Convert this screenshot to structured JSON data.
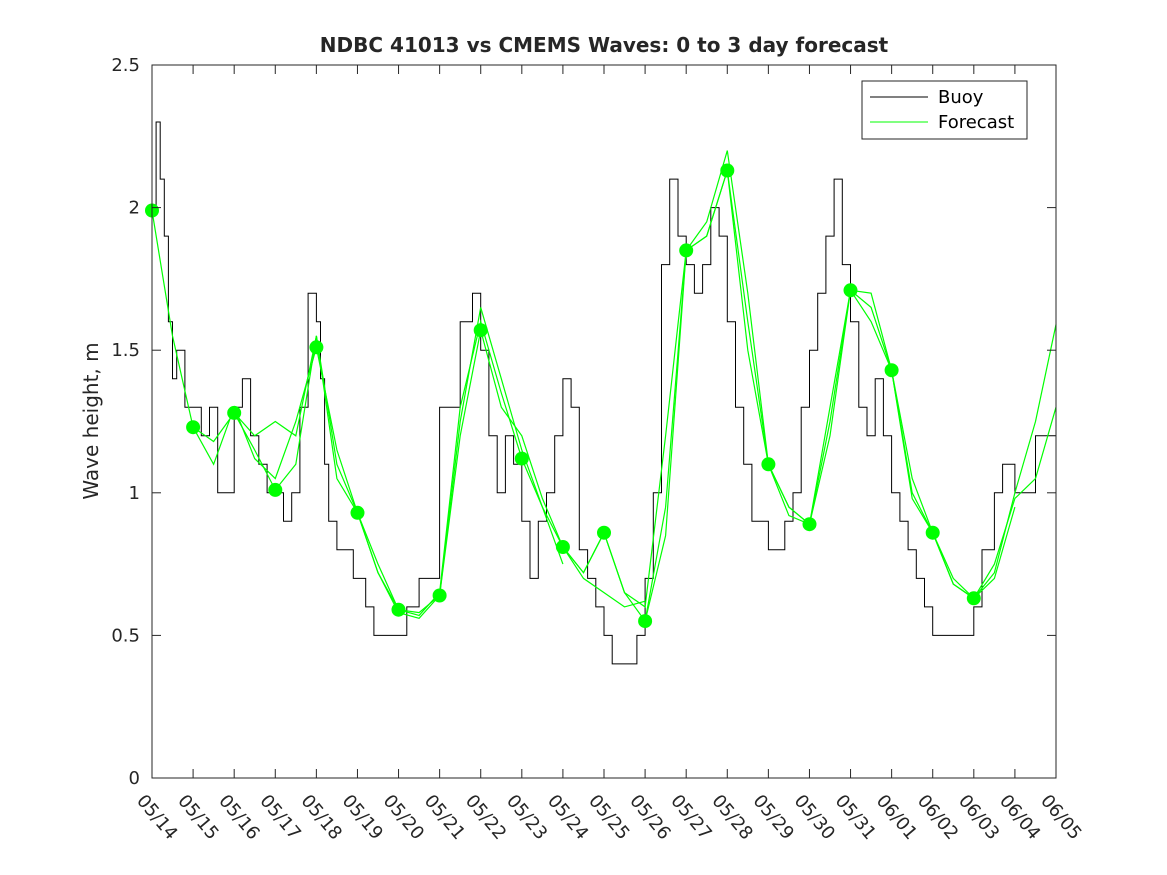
{
  "chart_data": {
    "type": "line",
    "title": "NDBC 41013 vs CMEMS Waves: 0 to 3 day forecast",
    "xlabel": "",
    "ylabel": "Wave height, m",
    "x_tick_labels": [
      "05/14",
      "05/15",
      "05/16",
      "05/17",
      "05/18",
      "05/19",
      "05/20",
      "05/21",
      "05/22",
      "05/23",
      "05/24",
      "05/25",
      "05/26",
      "05/27",
      "05/28",
      "05/29",
      "05/30",
      "05/31",
      "06/01",
      "06/02",
      "06/03",
      "06/04",
      "06/05"
    ],
    "y_ticks": [
      0,
      0.5,
      1,
      1.5,
      2,
      2.5
    ],
    "y_tick_labels": [
      "0",
      "0.5",
      "1",
      "1.5",
      "2",
      "2.5"
    ],
    "xlim": [
      0,
      22
    ],
    "ylim": [
      0,
      2.5
    ],
    "grid": false,
    "legend": {
      "placement": "top-right",
      "entries": [
        "Buoy",
        "Forecast"
      ]
    },
    "colors": {
      "buoy": "#000000",
      "forecast": "#00ff00",
      "marker": "#00ff00",
      "axis": "#262626"
    },
    "buoy": {
      "name": "Buoy",
      "x": [
        0,
        0.1,
        0.2,
        0.3,
        0.4,
        0.5,
        0.6,
        0.8,
        1.0,
        1.2,
        1.4,
        1.6,
        1.8,
        2.0,
        2.2,
        2.4,
        2.6,
        2.8,
        3.0,
        3.2,
        3.4,
        3.6,
        3.8,
        4.0,
        4.1,
        4.2,
        4.3,
        4.5,
        4.7,
        4.9,
        5.0,
        5.2,
        5.4,
        5.6,
        5.8,
        6.0,
        6.2,
        6.5,
        7.0,
        7.5,
        7.8,
        8.0,
        8.2,
        8.4,
        8.6,
        8.8,
        9.0,
        9.2,
        9.4,
        9.6,
        9.8,
        10.0,
        10.2,
        10.4,
        10.6,
        10.8,
        11.0,
        11.2,
        11.4,
        11.6,
        11.8,
        12.0,
        12.2,
        12.4,
        12.6,
        12.8,
        13.0,
        13.2,
        13.4,
        13.6,
        13.8,
        14.0,
        14.2,
        14.4,
        14.6,
        14.8,
        15.0,
        15.2,
        15.4,
        15.6,
        15.8,
        16.0,
        16.2,
        16.4,
        16.6,
        16.8,
        17.0,
        17.2,
        17.4,
        17.6,
        17.8,
        18.0,
        18.2,
        18.4,
        18.6,
        18.8,
        19.0,
        19.2,
        19.4,
        19.6,
        19.8,
        20.0,
        20.2,
        20.5,
        20.7,
        20.9,
        21.0,
        21.5,
        22.0
      ],
      "y": [
        2.0,
        2.3,
        2.1,
        1.9,
        1.6,
        1.4,
        1.5,
        1.3,
        1.3,
        1.2,
        1.3,
        1.0,
        1.0,
        1.3,
        1.4,
        1.2,
        1.1,
        1.0,
        1.0,
        0.9,
        1.0,
        1.3,
        1.7,
        1.6,
        1.4,
        1.1,
        0.9,
        0.8,
        0.8,
        0.7,
        0.7,
        0.6,
        0.5,
        0.5,
        0.5,
        0.5,
        0.6,
        0.7,
        1.3,
        1.6,
        1.7,
        1.5,
        1.2,
        1.0,
        1.2,
        1.1,
        0.9,
        0.7,
        0.9,
        1.0,
        1.2,
        1.4,
        1.3,
        0.8,
        0.7,
        0.6,
        0.5,
        0.4,
        0.4,
        0.4,
        0.5,
        0.7,
        1.0,
        1.8,
        2.1,
        1.9,
        1.8,
        1.7,
        1.8,
        2.0,
        1.9,
        1.6,
        1.3,
        1.1,
        0.9,
        0.9,
        0.8,
        0.8,
        0.9,
        1.0,
        1.3,
        1.5,
        1.7,
        1.9,
        2.1,
        1.8,
        1.6,
        1.3,
        1.2,
        1.4,
        1.2,
        1.0,
        0.9,
        0.8,
        0.7,
        0.6,
        0.5,
        0.5,
        0.5,
        0.5,
        0.5,
        0.6,
        0.8,
        1.0,
        1.1,
        1.1,
        1.0,
        1.2,
        1.4
      ]
    },
    "forecast_markers": {
      "name": "Forecast",
      "x": [
        0,
        1,
        2,
        3,
        4,
        5,
        6,
        7,
        8,
        9,
        10,
        11,
        12,
        13,
        14,
        15,
        16,
        17,
        18,
        19,
        20
      ],
      "y": [
        1.99,
        1.23,
        1.28,
        1.01,
        1.51,
        0.93,
        0.59,
        0.64,
        1.57,
        1.12,
        0.81,
        0.86,
        0.55,
        1.85,
        2.13,
        1.1,
        0.89,
        1.71,
        1.43,
        0.86,
        0.63
      ]
    },
    "forecast_runs": [
      {
        "x": [
          0,
          0.5,
          1,
          1.5,
          2,
          2.5,
          3
        ],
        "y": [
          1.99,
          1.55,
          1.23,
          1.18,
          1.28,
          1.15,
          1.01
        ]
      },
      {
        "x": [
          1,
          1.5,
          2,
          2.5,
          3,
          3.5,
          4
        ],
        "y": [
          1.23,
          1.1,
          1.3,
          1.12,
          1.05,
          1.25,
          1.51
        ]
      },
      {
        "x": [
          2,
          2.5,
          3,
          3.5,
          4,
          4.5,
          5
        ],
        "y": [
          1.28,
          1.2,
          1.25,
          1.2,
          1.55,
          1.1,
          0.93
        ]
      },
      {
        "x": [
          3,
          3.5,
          4,
          4.5,
          5,
          5.5,
          6
        ],
        "y": [
          1.01,
          1.1,
          1.55,
          1.05,
          0.93,
          0.75,
          0.59
        ]
      },
      {
        "x": [
          4,
          4.5,
          5,
          5.5,
          6,
          6.5,
          7
        ],
        "y": [
          1.51,
          1.15,
          0.93,
          0.72,
          0.58,
          0.56,
          0.64
        ]
      },
      {
        "x": [
          5,
          5.5,
          6,
          6.5,
          7,
          7.5,
          8
        ],
        "y": [
          0.93,
          0.72,
          0.59,
          0.58,
          0.64,
          1.2,
          1.57
        ]
      },
      {
        "x": [
          6,
          6.5,
          7,
          7.5,
          8,
          8.5,
          9
        ],
        "y": [
          0.59,
          0.57,
          0.65,
          1.3,
          1.6,
          1.35,
          1.12
        ]
      },
      {
        "x": [
          7,
          7.5,
          8,
          8.5,
          9,
          9.5,
          10
        ],
        "y": [
          0.64,
          1.25,
          1.65,
          1.4,
          1.15,
          0.95,
          0.75
        ]
      },
      {
        "x": [
          8,
          8.5,
          9,
          9.5,
          10,
          10.5,
          11
        ],
        "y": [
          1.57,
          1.3,
          1.2,
          0.98,
          0.81,
          0.72,
          0.86
        ]
      },
      {
        "x": [
          9,
          9.5,
          10,
          10.5,
          11,
          11.5,
          12
        ],
        "y": [
          1.12,
          0.95,
          0.81,
          0.7,
          0.65,
          0.6,
          0.62
        ]
      },
      {
        "x": [
          10,
          10.5,
          11,
          11.5,
          12,
          12.5,
          13
        ],
        "y": [
          0.81,
          0.72,
          0.86,
          0.65,
          0.6,
          1.2,
          1.85
        ]
      },
      {
        "x": [
          11,
          11.5,
          12,
          12.5,
          13,
          13.5,
          14
        ],
        "y": [
          0.86,
          0.65,
          0.55,
          0.85,
          1.85,
          1.9,
          2.13
        ]
      },
      {
        "x": [
          12,
          12.5,
          13,
          13.5,
          14,
          14.5,
          15
        ],
        "y": [
          0.55,
          0.95,
          1.85,
          1.95,
          2.2,
          1.7,
          1.1
        ]
      },
      {
        "x": [
          13,
          13.5,
          14,
          14.5,
          15,
          15.5,
          16
        ],
        "y": [
          1.85,
          1.9,
          2.13,
          1.6,
          1.1,
          0.95,
          0.89
        ]
      },
      {
        "x": [
          14,
          14.5,
          15,
          15.5,
          16,
          16.5,
          17
        ],
        "y": [
          2.13,
          1.5,
          1.1,
          0.92,
          0.89,
          1.2,
          1.71
        ]
      },
      {
        "x": [
          15,
          15.5,
          16,
          16.5,
          17,
          17.5,
          18
        ],
        "y": [
          1.1,
          0.95,
          0.89,
          1.25,
          1.71,
          1.7,
          1.43
        ]
      },
      {
        "x": [
          16,
          16.5,
          17,
          17.5,
          18,
          18.5,
          19
        ],
        "y": [
          0.89,
          1.3,
          1.71,
          1.65,
          1.43,
          1.05,
          0.86
        ]
      },
      {
        "x": [
          17,
          17.5,
          18,
          18.5,
          19,
          19.5,
          20
        ],
        "y": [
          1.71,
          1.6,
          1.43,
          0.98,
          0.86,
          0.7,
          0.63
        ]
      },
      {
        "x": [
          18,
          18.5,
          19,
          19.5,
          20,
          20.5,
          21
        ],
        "y": [
          1.43,
          1.0,
          0.86,
          0.68,
          0.63,
          0.7,
          0.95
        ]
      },
      {
        "x": [
          19,
          19.5,
          20,
          20.5,
          21,
          21.5,
          22
        ],
        "y": [
          0.86,
          0.68,
          0.63,
          0.72,
          1.0,
          1.25,
          1.59
        ]
      },
      {
        "x": [
          20,
          20.5,
          21,
          21.5,
          22
        ],
        "y": [
          0.63,
          0.75,
          0.98,
          1.05,
          1.3
        ]
      }
    ]
  }
}
